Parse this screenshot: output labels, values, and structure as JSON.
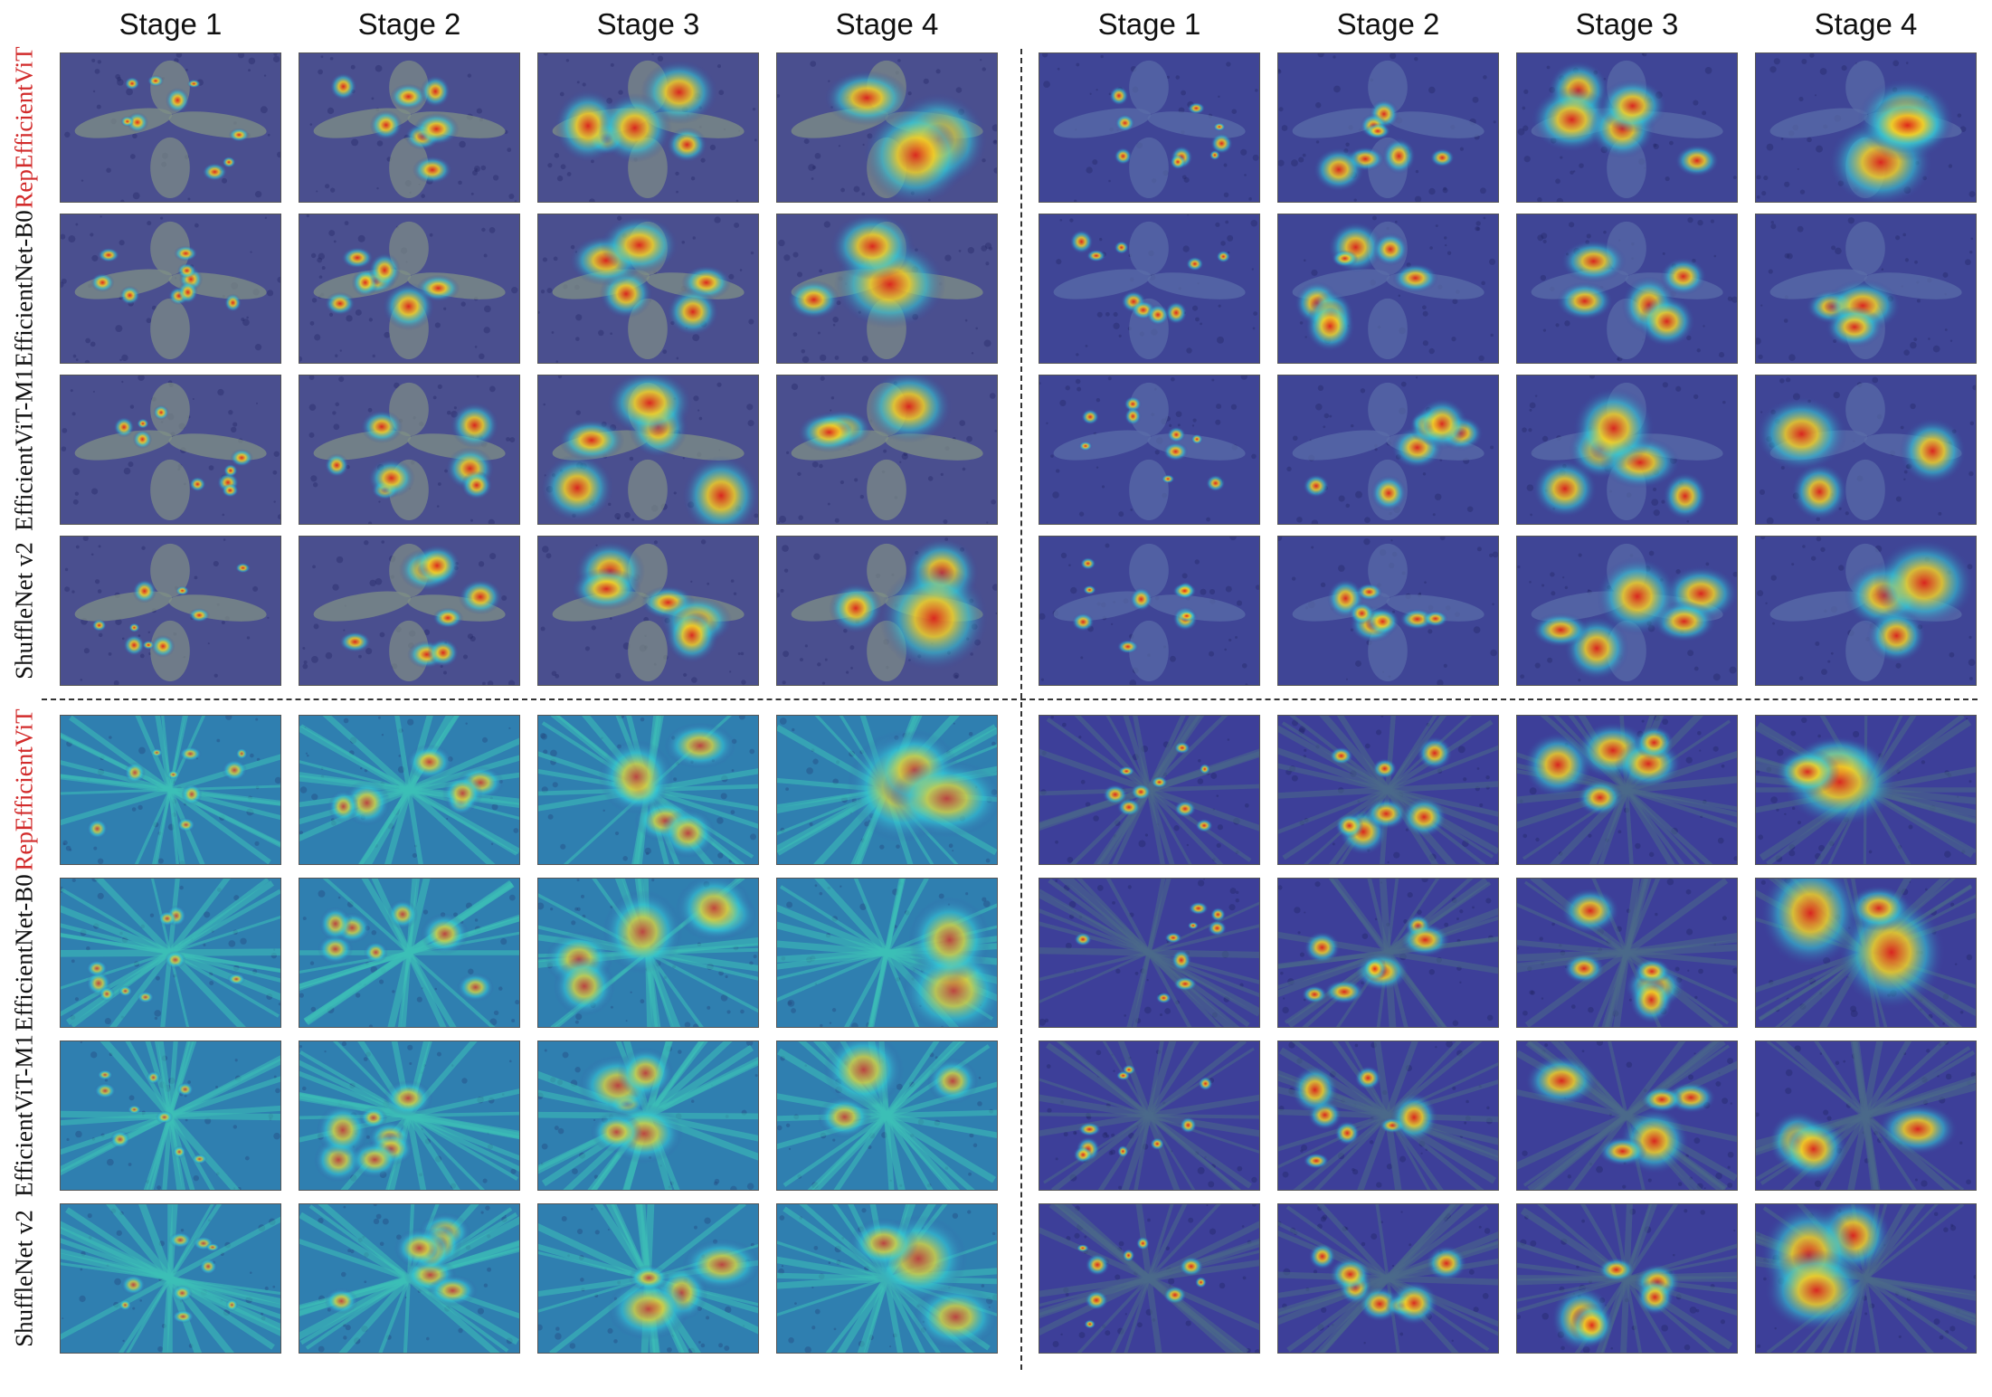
{
  "column_labels": [
    "Stage 1",
    "Stage 2",
    "Stage 3",
    "Stage 4"
  ],
  "row_labels": [
    {
      "text": "RepEfficientViT",
      "highlight": true
    },
    {
      "text": "EfficientNet-B0",
      "highlight": false
    },
    {
      "text": "EfficientViT-M1",
      "highlight": false
    },
    {
      "text": "ShuffleNet v2",
      "highlight": false
    }
  ],
  "colors": {
    "highlight_label": "#d22b2b",
    "heatmap_low": "#3b3f9a",
    "heatmap_mid": "#33c6d6",
    "heatmap_high": "#e0241a"
  },
  "quadrants": [
    {
      "scene": "seedling-dark-soil",
      "base": "#4a4f8f",
      "plant": "#7f8f86"
    },
    {
      "scene": "seedling-blue-soil",
      "base": "#3f4596",
      "plant": "#5a6ca8"
    },
    {
      "scene": "weed-dense-grass",
      "base": "#2f6fa8",
      "plant": "#3fbfb0"
    },
    {
      "scene": "weed-broadleaf",
      "base": "#3d3f99",
      "plant": "#4b6a8a"
    }
  ]
}
